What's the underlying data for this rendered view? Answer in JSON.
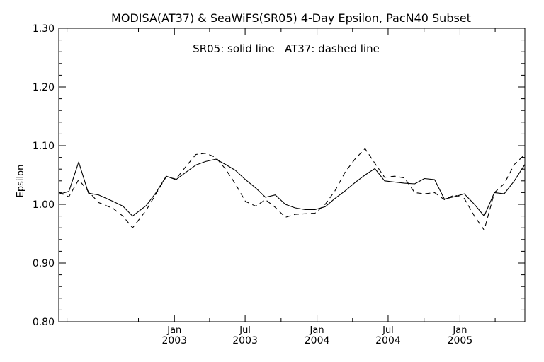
{
  "chart_data": {
    "type": "line",
    "title": "MODISA(AT37) & SeaWiFS(SR05) 4-Day Epsilon, PacN40 Subset",
    "annotation": "SR05: solid line   AT37: dashed line",
    "ylabel": "Epsilon",
    "xlabel": "",
    "x_range": [
      "2002-03-11",
      "2005-06-16"
    ],
    "ylim": [
      0.8,
      1.3
    ],
    "y_ticks": [
      "0.80",
      "0.90",
      "1.00",
      "1.10",
      "1.20",
      "1.30"
    ],
    "y_tick_values": [
      0.8,
      0.9,
      1.0,
      1.1,
      1.2,
      1.3
    ],
    "x_ticks": [
      {
        "date": "2003-01-01",
        "month": "Jan",
        "year": "2003"
      },
      {
        "date": "2003-07-01",
        "month": "Jul",
        "year": "2003"
      },
      {
        "date": "2004-01-01",
        "month": "Jan",
        "year": "2004"
      },
      {
        "date": "2004-07-01",
        "month": "Jul",
        "year": "2004"
      },
      {
        "date": "2005-01-01",
        "month": "Jan",
        "year": "2005"
      }
    ],
    "grid": false,
    "series": [
      {
        "name": "SR05",
        "style": "solid",
        "x": [
          "2002-03-11",
          "2002-04-06",
          "2002-05-01",
          "2002-05-26",
          "2002-06-21",
          "2002-07-28",
          "2002-08-22",
          "2002-09-16",
          "2002-10-21",
          "2002-11-15",
          "2002-12-11",
          "2003-01-05",
          "2003-01-31",
          "2003-02-25",
          "2003-03-22",
          "2003-04-17",
          "2003-05-12",
          "2003-06-06",
          "2003-07-02",
          "2003-07-28",
          "2003-08-22",
          "2003-09-16",
          "2003-10-12",
          "2003-11-06",
          "2003-12-02",
          "2003-12-27",
          "2004-01-22",
          "2004-02-16",
          "2004-03-13",
          "2004-04-07",
          "2004-05-03",
          "2004-05-28",
          "2004-06-22",
          "2004-07-18",
          "2004-08-12",
          "2004-09-07",
          "2004-10-02",
          "2004-10-28",
          "2004-11-22",
          "2004-12-18",
          "2005-01-12",
          "2005-02-07",
          "2005-03-04",
          "2005-03-30",
          "2005-04-24",
          "2005-05-20",
          "2005-06-16"
        ],
        "y": [
          1.017,
          1.022,
          1.072,
          1.019,
          1.016,
          1.005,
          0.997,
          0.98,
          0.998,
          1.02,
          1.048,
          1.042,
          1.055,
          1.067,
          1.073,
          1.077,
          1.068,
          1.058,
          1.042,
          1.028,
          1.012,
          1.016,
          1.0,
          0.994,
          0.991,
          0.991,
          0.996,
          1.01,
          1.023,
          1.037,
          1.05,
          1.061,
          1.04,
          1.038,
          1.036,
          1.035,
          1.044,
          1.042,
          1.009,
          1.013,
          1.018,
          1.0,
          0.98,
          1.02,
          1.018,
          1.04,
          1.068
        ]
      },
      {
        "name": "AT37",
        "style": "dashed",
        "x": [
          "2002-03-11",
          "2002-04-06",
          "2002-05-01",
          "2002-05-26",
          "2002-06-21",
          "2002-07-28",
          "2002-08-22",
          "2002-09-16",
          "2002-10-21",
          "2002-11-15",
          "2002-12-11",
          "2003-01-05",
          "2003-01-31",
          "2003-02-25",
          "2003-03-22",
          "2003-04-17",
          "2003-05-12",
          "2003-06-06",
          "2003-07-02",
          "2003-07-28",
          "2003-08-22",
          "2003-09-16",
          "2003-10-12",
          "2003-11-06",
          "2003-12-02",
          "2003-12-27",
          "2004-01-22",
          "2004-02-16",
          "2004-03-13",
          "2004-04-07",
          "2004-05-03",
          "2004-05-28",
          "2004-06-22",
          "2004-07-18",
          "2004-08-12",
          "2004-09-07",
          "2004-10-02",
          "2004-10-28",
          "2004-11-22",
          "2004-12-18",
          "2005-01-12",
          "2005-02-07",
          "2005-03-04",
          "2005-03-30",
          "2005-04-24",
          "2005-05-20",
          "2005-06-16"
        ],
        "y": [
          1.02,
          1.013,
          1.042,
          1.022,
          1.003,
          0.993,
          0.98,
          0.96,
          0.99,
          1.018,
          1.047,
          1.043,
          1.065,
          1.085,
          1.087,
          1.08,
          1.06,
          1.035,
          1.005,
          0.997,
          1.008,
          0.995,
          0.978,
          0.983,
          0.984,
          0.985,
          1.0,
          1.023,
          1.055,
          1.077,
          1.095,
          1.07,
          1.046,
          1.048,
          1.045,
          1.02,
          1.018,
          1.02,
          1.008,
          1.016,
          1.01,
          0.98,
          0.956,
          1.02,
          1.035,
          1.068,
          1.085
        ]
      }
    ]
  }
}
